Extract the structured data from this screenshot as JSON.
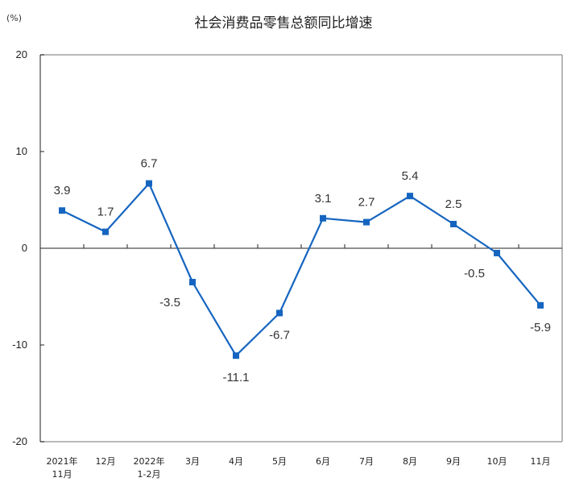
{
  "chart_data": {
    "type": "line",
    "title": "社会消费品零售总额同比增速",
    "ylabel": "(%)",
    "xlabel": "",
    "ylim": [
      -20,
      20
    ],
    "yticks": [
      20,
      10,
      0,
      -10,
      -20
    ],
    "grid": false,
    "legend": null,
    "categories": [
      [
        "2021年",
        "11月"
      ],
      [
        "12月"
      ],
      [
        "2022年",
        "1-2月"
      ],
      [
        "3月"
      ],
      [
        "4月"
      ],
      [
        "5月"
      ],
      [
        "6月"
      ],
      [
        "7月"
      ],
      [
        "8月"
      ],
      [
        "9月"
      ],
      [
        "10月"
      ],
      [
        "11月"
      ]
    ],
    "series": [
      {
        "name": "社会消费品零售总额同比增速",
        "color": "#1565c0",
        "values": [
          3.9,
          1.7,
          6.7,
          -3.5,
          -11.1,
          -6.7,
          3.1,
          2.7,
          5.4,
          2.5,
          -0.5,
          -5.9
        ],
        "labels": [
          "3.9",
          "1.7",
          "6.7",
          "-3.5",
          "-11.1",
          "-6.7",
          "3.1",
          "2.7",
          "5.4",
          "2.5",
          "-0.5",
          "-5.9"
        ],
        "label_pos": [
          "above",
          "above",
          "above",
          "below-left",
          "below",
          "below",
          "above",
          "above",
          "above",
          "above",
          "below-left",
          "below"
        ]
      }
    ]
  }
}
